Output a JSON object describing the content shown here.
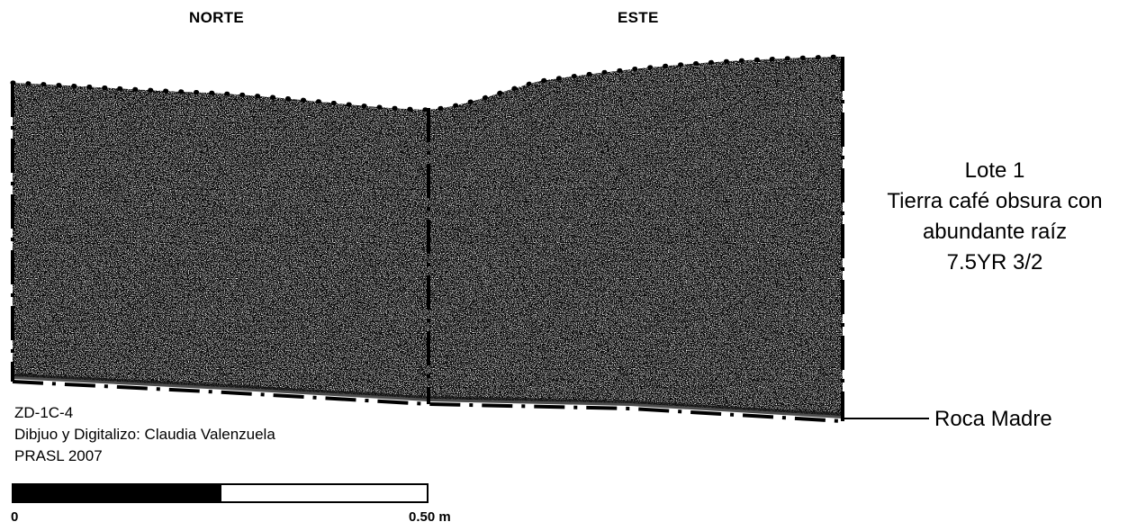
{
  "titles": {
    "north": "NORTE",
    "east": "ESTE"
  },
  "layer": {
    "name": "Lote 1",
    "description_line1": "Tierra café obsura con",
    "description_line2": "abundante raíz",
    "munsell": "7.5YR 3/2"
  },
  "bedrock_label": "Roca Madre",
  "credits": {
    "unit": "ZD-1C-4",
    "author": "Dibjuo y Digitalizo: Claudia Valenzuela",
    "project": "PRASL  2007"
  },
  "scale": {
    "min_label": "0",
    "max_label": "0.50 m",
    "segments": 2
  },
  "colors": {
    "ink": "#000000",
    "paper": "#ffffff",
    "soil_texture": "#1a1a1a"
  }
}
